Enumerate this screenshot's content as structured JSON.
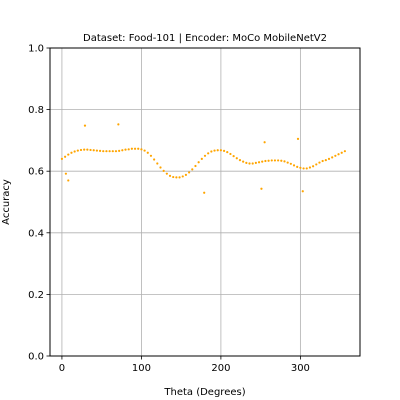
{
  "chart_data": {
    "type": "scatter",
    "title": "Dataset: Food-101 | Encoder: MoCo MobileNetV2",
    "xlabel": "Theta (Degrees)",
    "ylabel": "Accuracy",
    "xlim": [
      -15,
      375
    ],
    "ylim": [
      0.0,
      1.0
    ],
    "xticks": [
      0,
      100,
      200,
      300
    ],
    "yticks": [
      0.0,
      0.2,
      0.4,
      0.6,
      0.8,
      1.0
    ],
    "xtick_labels": [
      "0",
      "100",
      "200",
      "300"
    ],
    "ytick_labels": [
      "0.0",
      "0.2",
      "0.4",
      "0.6",
      "0.8",
      "1.0"
    ],
    "grid": true,
    "point_color": "#FFA500",
    "series": [
      {
        "x": [
          0,
          4,
          8,
          12,
          16,
          20,
          24,
          28,
          32,
          36,
          40,
          44,
          48,
          52,
          56,
          60,
          64,
          68,
          72,
          76,
          80,
          84,
          88,
          92,
          96,
          100,
          104,
          108,
          112,
          116,
          120,
          124,
          128,
          132,
          136,
          140,
          144,
          148,
          152,
          156,
          160,
          164,
          168,
          172,
          176,
          180,
          184,
          188,
          192,
          196,
          200,
          204,
          208,
          212,
          216,
          220,
          224,
          228,
          232,
          236,
          240,
          244,
          248,
          252,
          256,
          260,
          264,
          268,
          272,
          276,
          280,
          284,
          288,
          292,
          296,
          300,
          304,
          308,
          312,
          316,
          320,
          324,
          328,
          332,
          336,
          340,
          344,
          348,
          352,
          356,
          5,
          8,
          29,
          71,
          179,
          251,
          255,
          297,
          303
        ],
        "y": [
          0.64,
          0.647,
          0.654,
          0.66,
          0.664,
          0.667,
          0.669,
          0.67,
          0.67,
          0.669,
          0.668,
          0.667,
          0.666,
          0.665,
          0.665,
          0.665,
          0.665,
          0.665,
          0.666,
          0.668,
          0.67,
          0.671,
          0.673,
          0.673,
          0.673,
          0.671,
          0.667,
          0.66,
          0.65,
          0.638,
          0.625,
          0.612,
          0.601,
          0.592,
          0.585,
          0.581,
          0.58,
          0.58,
          0.583,
          0.588,
          0.596,
          0.606,
          0.617,
          0.629,
          0.64,
          0.65,
          0.658,
          0.664,
          0.667,
          0.668,
          0.668,
          0.666,
          0.662,
          0.656,
          0.649,
          0.642,
          0.636,
          0.631,
          0.627,
          0.625,
          0.625,
          0.627,
          0.629,
          0.631,
          0.633,
          0.634,
          0.635,
          0.635,
          0.635,
          0.634,
          0.632,
          0.628,
          0.624,
          0.619,
          0.614,
          0.611,
          0.609,
          0.609,
          0.612,
          0.616,
          0.622,
          0.628,
          0.633,
          0.636,
          0.64,
          0.645,
          0.65,
          0.655,
          0.66,
          0.665,
          0.592,
          0.57,
          0.748,
          0.752,
          0.53,
          0.543,
          0.694,
          0.705,
          0.535
        ]
      }
    ]
  }
}
